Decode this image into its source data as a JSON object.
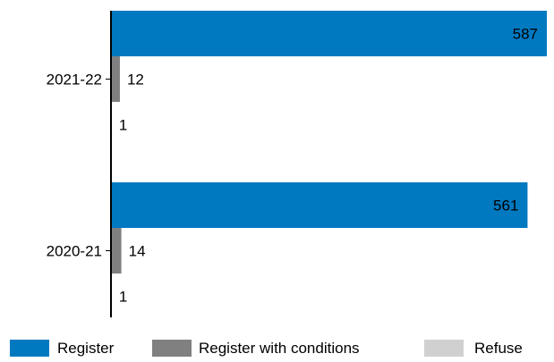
{
  "chart_data": {
    "type": "bar",
    "orientation": "horizontal",
    "categories": [
      "2021-22",
      "2020-21"
    ],
    "series": [
      {
        "name": "Register",
        "values": [
          587,
          561
        ],
        "color": "#0079C1"
      },
      {
        "name": "Register with conditions",
        "values": [
          12,
          14
        ],
        "color": "#808080"
      },
      {
        "name": "Refuse",
        "values": [
          1,
          1
        ],
        "color": "#D0D0D0"
      }
    ],
    "title": "",
    "xlabel": "",
    "ylabel": "",
    "xlim": [
      0,
      587
    ],
    "grid": false,
    "legend": "bottom"
  }
}
